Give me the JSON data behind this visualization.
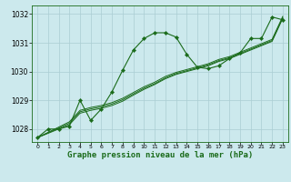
{
  "bg_color": "#cce9ed",
  "grid_color": "#aacdd3",
  "line_color": "#1a6b1a",
  "marker_color": "#1a6b1a",
  "xlabel": "Graphe pression niveau de la mer (hPa)",
  "xlim": [
    -0.5,
    23.5
  ],
  "ylim": [
    1027.55,
    1032.3
  ],
  "yticks": [
    1028,
    1029,
    1030,
    1031,
    1032
  ],
  "xticks": [
    0,
    1,
    2,
    3,
    4,
    5,
    6,
    7,
    8,
    9,
    10,
    11,
    12,
    13,
    14,
    15,
    16,
    17,
    18,
    19,
    20,
    21,
    22,
    23
  ],
  "series1_x": [
    0,
    1,
    2,
    3,
    4,
    5,
    6,
    7,
    8,
    9,
    10,
    11,
    12,
    13,
    14,
    15,
    16,
    17,
    18,
    19,
    20,
    21,
    22,
    23
  ],
  "series1_y": [
    1027.7,
    1028.0,
    1028.0,
    1028.1,
    1029.0,
    1028.3,
    1028.7,
    1029.3,
    1030.05,
    1030.75,
    1031.15,
    1031.35,
    1031.35,
    1031.2,
    1030.6,
    1030.15,
    1030.1,
    1030.2,
    1030.45,
    1030.65,
    1031.15,
    1031.15,
    1031.9,
    1031.8
  ],
  "series2_x": [
    0,
    3,
    4,
    5,
    6,
    7,
    8,
    9,
    10,
    11,
    12,
    13,
    14,
    15,
    16,
    17,
    18,
    19,
    20,
    21,
    22,
    23
  ],
  "series2_y": [
    1027.7,
    1028.15,
    1028.55,
    1028.65,
    1028.72,
    1028.82,
    1028.97,
    1029.18,
    1029.38,
    1029.55,
    1029.75,
    1029.9,
    1030.0,
    1030.1,
    1030.2,
    1030.35,
    1030.45,
    1030.6,
    1030.75,
    1030.9,
    1031.05,
    1031.85
  ],
  "series3_x": [
    0,
    3,
    4,
    5,
    6,
    7,
    8,
    9,
    10,
    11,
    12,
    13,
    14,
    15,
    16,
    17,
    18,
    19,
    20,
    21,
    22,
    23
  ],
  "series3_y": [
    1027.7,
    1028.2,
    1028.6,
    1028.7,
    1028.77,
    1028.87,
    1029.02,
    1029.22,
    1029.42,
    1029.58,
    1029.78,
    1029.93,
    1030.03,
    1030.13,
    1030.23,
    1030.38,
    1030.48,
    1030.63,
    1030.78,
    1030.93,
    1031.08,
    1031.88
  ],
  "series4_x": [
    0,
    3,
    4,
    5,
    6,
    7,
    8,
    9,
    10,
    11,
    12,
    13,
    14,
    15,
    16,
    17,
    18,
    19,
    20,
    21,
    22,
    23
  ],
  "series4_y": [
    1027.7,
    1028.25,
    1028.65,
    1028.75,
    1028.82,
    1028.92,
    1029.07,
    1029.27,
    1029.47,
    1029.63,
    1029.83,
    1029.97,
    1030.07,
    1030.17,
    1030.27,
    1030.42,
    1030.52,
    1030.67,
    1030.82,
    1030.97,
    1031.12,
    1031.92
  ]
}
